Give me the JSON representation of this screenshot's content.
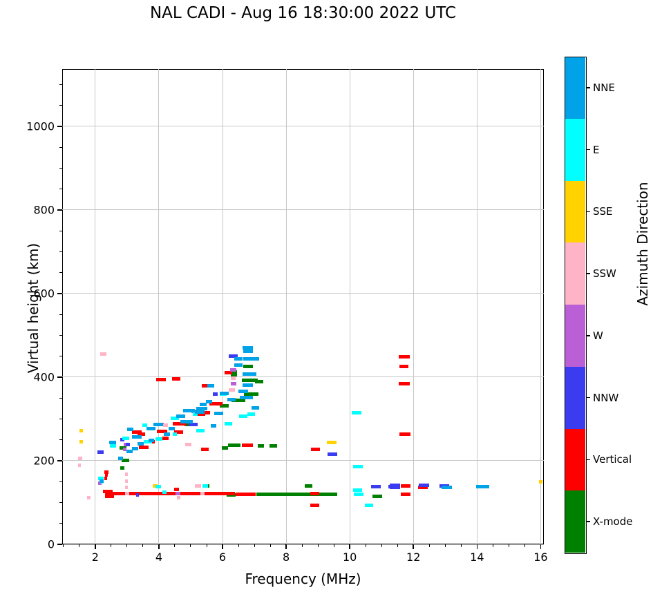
{
  "title": "NAL CADI - Aug 16 18:30:00 2022 UTC",
  "chart_data": {
    "type": "scatter",
    "title": "NAL CADI - Aug 16 18:30:00 2022 UTC",
    "xlabel": "Frequency (MHz)",
    "ylabel": "Virtual height (km)",
    "xlim": [
      0.96,
      16.1
    ],
    "ylim": [
      0,
      1137
    ],
    "xticks": [
      2,
      4,
      6,
      8,
      10,
      12,
      14,
      16
    ],
    "yticks": [
      0,
      200,
      400,
      600,
      800,
      1000
    ],
    "x_minor_step": 0.5,
    "y_minor_step": 50,
    "grid": true,
    "grid_color": "#c6c6c6",
    "marker": "horizontal dash",
    "colorbar": {
      "label": "Azimuth Direction",
      "categories_top_to_bottom": [
        {
          "label": "NNE",
          "color": "#00A3E8"
        },
        {
          "label": "E",
          "color": "#00FFFF"
        },
        {
          "label": "SSE",
          "color": "#FFD200"
        },
        {
          "label": "SSW",
          "color": "#FFB3C6"
        },
        {
          "label": "W",
          "color": "#BB5FD6"
        },
        {
          "label": "NNW",
          "color": "#3B3BEF"
        },
        {
          "label": "Vertical",
          "color": "#FF0000"
        },
        {
          "label": "X-mode",
          "color": "#008000"
        }
      ]
    },
    "series": [
      {
        "name": "X-mode",
        "color": "#008000",
        "points": [
          [
            6.27,
            118,
            0.3
          ],
          [
            8.33,
            119,
            2.55
          ],
          [
            2.85,
            182,
            0.14
          ],
          [
            2.87,
            231,
            0.2
          ],
          [
            2.95,
            200,
            0.25
          ],
          [
            4.92,
            286,
            0.25
          ],
          [
            5.52,
            139,
            0.15
          ],
          [
            6.07,
            231,
            0.2
          ],
          [
            6.05,
            331,
            0.28
          ],
          [
            6.35,
            406,
            0.2
          ],
          [
            6.35,
            412,
            0.2
          ],
          [
            6.37,
            237,
            0.4
          ],
          [
            6.5,
            345,
            0.45
          ],
          [
            6.85,
            392,
            0.5
          ],
          [
            6.9,
            360,
            0.45
          ],
          [
            6.8,
            425,
            0.3
          ],
          [
            7.15,
            390,
            0.28
          ],
          [
            7.2,
            236,
            0.2
          ],
          [
            7.6,
            236,
            0.25
          ],
          [
            8.7,
            140,
            0.25
          ],
          [
            10.87,
            115,
            0.3
          ]
        ]
      },
      {
        "name": "Vertical",
        "color": "#FF0000",
        "points": [
          [
            4.35,
            122,
            4.1
          ],
          [
            6.73,
            120,
            0.62
          ],
          [
            2.4,
            127,
            0.3
          ],
          [
            2.45,
            115,
            0.28
          ],
          [
            2.33,
            157,
            0.1
          ],
          [
            2.35,
            166,
            0.1
          ],
          [
            2.35,
            172,
            0.12
          ],
          [
            3.3,
            269,
            0.3
          ],
          [
            3.45,
            263,
            0.25
          ],
          [
            3.52,
            232,
            0.3
          ],
          [
            3.77,
            246,
            0.2
          ],
          [
            4.05,
            286,
            0.2
          ],
          [
            4.07,
            394,
            0.3
          ],
          [
            4.1,
            271,
            0.34
          ],
          [
            4.2,
            253,
            0.2
          ],
          [
            4.54,
            396,
            0.25
          ],
          [
            4.55,
            132,
            0.16
          ],
          [
            4.62,
            269,
            0.3
          ],
          [
            4.65,
            288,
            0.45
          ],
          [
            5.33,
            312,
            0.25
          ],
          [
            5.45,
            228,
            0.25
          ],
          [
            5.45,
            314,
            0.3
          ],
          [
            5.45,
            379,
            0.2
          ],
          [
            5.8,
            337,
            0.42
          ],
          [
            6.18,
            410,
            0.25
          ],
          [
            6.78,
            237,
            0.35
          ],
          [
            8.93,
            228,
            0.28
          ],
          [
            8.9,
            122,
            0.28
          ],
          [
            8.9,
            93,
            0.3
          ],
          [
            11.72,
            449,
            0.35
          ],
          [
            11.7,
            426,
            0.3
          ],
          [
            11.72,
            384,
            0.35
          ],
          [
            11.73,
            264,
            0.35
          ],
          [
            11.75,
            139,
            0.3
          ],
          [
            11.75,
            119,
            0.3
          ],
          [
            12.3,
            136,
            0.3
          ]
        ]
      },
      {
        "name": "SSW",
        "color": "#FFB3C6",
        "points": [
          [
            1.52,
            206,
            0.12
          ],
          [
            1.5,
            189,
            0.1
          ],
          [
            1.8,
            112,
            0.12
          ],
          [
            2.25,
            456,
            0.2
          ],
          [
            2.98,
            168,
            0.1
          ],
          [
            2.98,
            152,
            0.1
          ],
          [
            2.98,
            136,
            0.1
          ],
          [
            3.0,
            122,
            0.12
          ],
          [
            4.2,
            285,
            0.15
          ],
          [
            4.62,
            112,
            0.12
          ],
          [
            4.93,
            238,
            0.2
          ],
          [
            5.22,
            140,
            0.2
          ],
          [
            5.37,
            121,
            0.15
          ],
          [
            6.3,
            370,
            0.2
          ],
          [
            6.33,
            398,
            0.16
          ]
        ]
      },
      {
        "name": "SSE",
        "color": "#FFD200",
        "points": [
          [
            1.56,
            272,
            0.12
          ],
          [
            1.56,
            245,
            0.12
          ],
          [
            3.88,
            140,
            0.16
          ],
          [
            9.43,
            244,
            0.3
          ],
          [
            16.0,
            150,
            0.12
          ]
        ]
      },
      {
        "name": "W",
        "color": "#BB5FD6",
        "points": [
          [
            2.15,
            147,
            0.1
          ],
          [
            2.93,
            228,
            0.1
          ],
          [
            2.95,
            238,
            0.12
          ],
          [
            4.6,
            122,
            0.15
          ],
          [
            5.15,
            318,
            0.25
          ],
          [
            6.33,
            418,
            0.2
          ],
          [
            6.35,
            385,
            0.18
          ]
        ]
      },
      {
        "name": "NNW",
        "color": "#3B3BEF",
        "points": [
          [
            2.17,
            220,
            0.2
          ],
          [
            2.85,
            250,
            0.15
          ],
          [
            3.02,
            238,
            0.12
          ],
          [
            3.33,
            118,
            0.1
          ],
          [
            5.08,
            286,
            0.28
          ],
          [
            5.77,
            360,
            0.16
          ],
          [
            6.33,
            451,
            0.28
          ],
          [
            9.45,
            215,
            0.3
          ],
          [
            10.82,
            138,
            0.3
          ],
          [
            11.32,
            138,
            0.2
          ],
          [
            11.42,
            142,
            0.32
          ],
          [
            11.42,
            137,
            0.32
          ],
          [
            12.33,
            141,
            0.34
          ],
          [
            12.98,
            140,
            0.3
          ]
        ]
      },
      {
        "name": "E",
        "color": "#00FFFF",
        "points": [
          [
            2.18,
            158,
            0.18
          ],
          [
            2.2,
            149,
            0.1
          ],
          [
            2.55,
            236,
            0.2
          ],
          [
            2.96,
            253,
            0.22
          ],
          [
            3.55,
            285,
            0.16
          ],
          [
            3.65,
            245,
            0.25
          ],
          [
            3.98,
            138,
            0.18
          ],
          [
            4.0,
            252,
            0.2
          ],
          [
            4.17,
            124,
            0.14
          ],
          [
            4.5,
            263,
            0.15
          ],
          [
            4.5,
            302,
            0.25
          ],
          [
            5.15,
            312,
            0.15
          ],
          [
            5.3,
            272,
            0.25
          ],
          [
            5.45,
            140,
            0.18
          ],
          [
            6.02,
            360,
            0.2
          ],
          [
            6.18,
            288,
            0.25
          ],
          [
            6.65,
            306,
            0.28
          ],
          [
            6.9,
            311,
            0.25
          ],
          [
            10.22,
            314,
            0.3
          ],
          [
            10.25,
            186,
            0.3
          ],
          [
            10.25,
            129,
            0.28
          ],
          [
            10.28,
            120,
            0.3
          ],
          [
            10.6,
            93,
            0.25
          ]
        ]
      },
      {
        "name": "NNE",
        "color": "#00A3E8",
        "points": [
          [
            2.2,
            152,
            0.12
          ],
          [
            2.55,
            243,
            0.22
          ],
          [
            2.8,
            206,
            0.15
          ],
          [
            3.07,
            223,
            0.2
          ],
          [
            3.1,
            275,
            0.2
          ],
          [
            3.25,
            229,
            0.2
          ],
          [
            3.3,
            257,
            0.3
          ],
          [
            3.42,
            240,
            0.2
          ],
          [
            3.76,
            248,
            0.18
          ],
          [
            3.75,
            277,
            0.28
          ],
          [
            3.98,
            286,
            0.3
          ],
          [
            4.25,
            263,
            0.2
          ],
          [
            4.4,
            276,
            0.2
          ],
          [
            4.68,
            307,
            0.28
          ],
          [
            4.87,
            294,
            0.38
          ],
          [
            4.95,
            320,
            0.38
          ],
          [
            5.28,
            317,
            0.32
          ],
          [
            5.35,
            325,
            0.35
          ],
          [
            5.4,
            334,
            0.22
          ],
          [
            5.58,
            341,
            0.2
          ],
          [
            5.63,
            380,
            0.22
          ],
          [
            5.72,
            283,
            0.18
          ],
          [
            5.88,
            313,
            0.28
          ],
          [
            6.05,
            361,
            0.28
          ],
          [
            6.28,
            347,
            0.25
          ],
          [
            6.5,
            429,
            0.28
          ],
          [
            6.5,
            443,
            0.28
          ],
          [
            6.65,
            366,
            0.3
          ],
          [
            6.75,
            352,
            0.42
          ],
          [
            6.8,
            381,
            0.32
          ],
          [
            6.8,
            462,
            0.3
          ],
          [
            6.8,
            470,
            0.32
          ],
          [
            6.85,
            407,
            0.42
          ],
          [
            6.9,
            443,
            0.5
          ],
          [
            7.03,
            326,
            0.22
          ],
          [
            13.05,
            136,
            0.32
          ],
          [
            14.18,
            138,
            0.42
          ]
        ]
      }
    ]
  }
}
